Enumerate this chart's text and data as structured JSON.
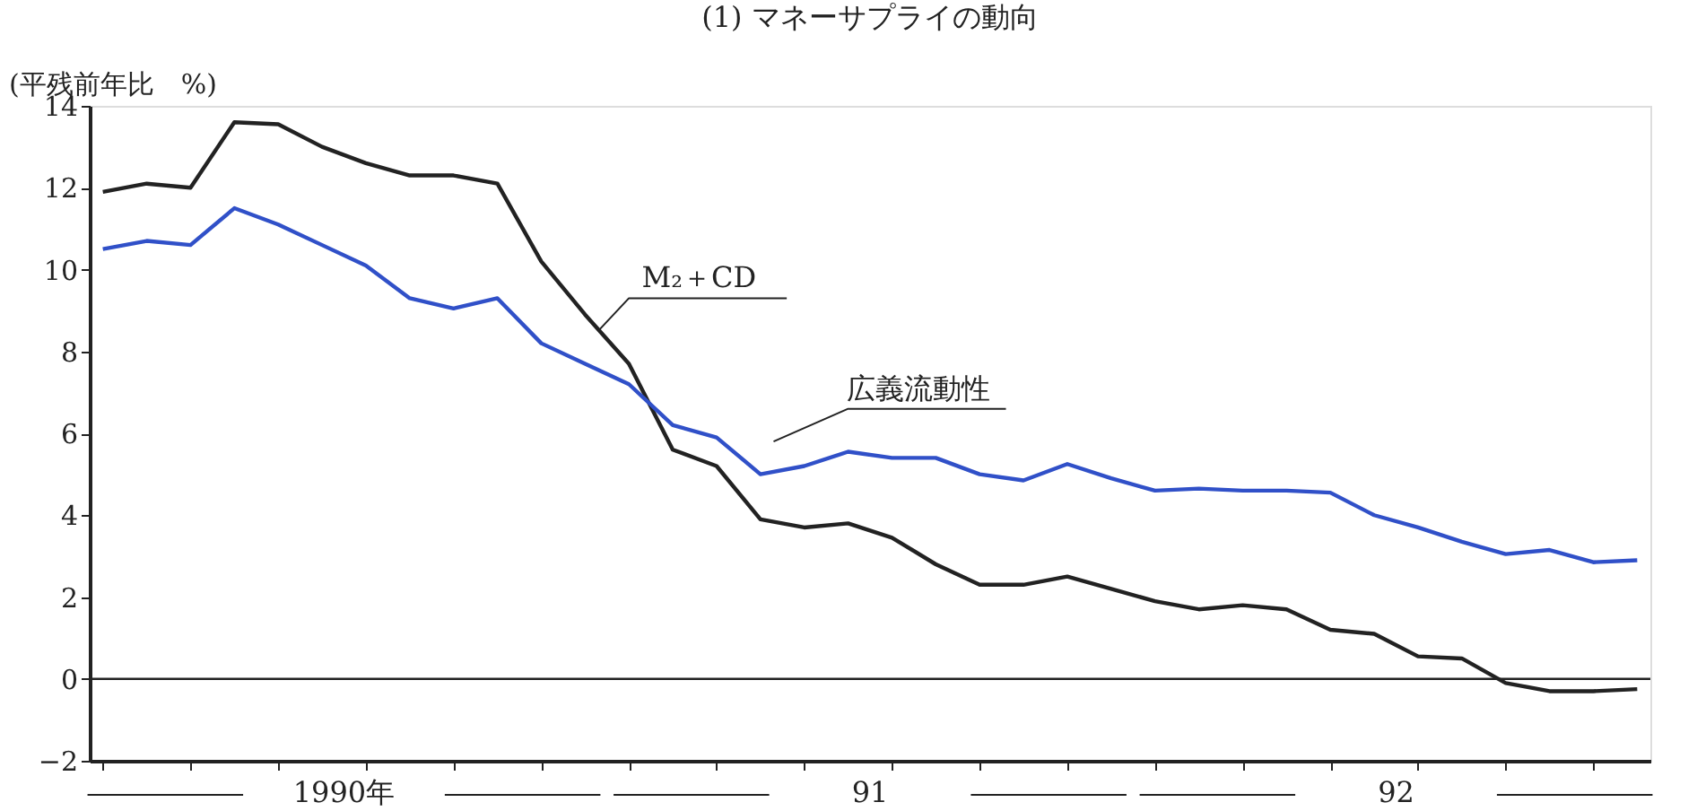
{
  "chart_data": {
    "type": "line",
    "title": "(1) マネーサプライの動向",
    "ylabel": "(平残前年比　%)",
    "categories": [
      null,
      null,
      null,
      null,
      null,
      null,
      null,
      null,
      null,
      null,
      null,
      null,
      null,
      null,
      null,
      null,
      null,
      null,
      null,
      null,
      null,
      null,
      null,
      null,
      null,
      null,
      null,
      null,
      null,
      null,
      null,
      null,
      null,
      null,
      null,
      null
    ],
    "series": [
      {
        "name": "M₂＋CD",
        "color": "#222222",
        "values": [
          11.9,
          12.1,
          12.0,
          13.6,
          13.55,
          13.0,
          12.6,
          12.3,
          12.3,
          12.1,
          10.2,
          8.9,
          7.7,
          5.6,
          5.2,
          3.9,
          3.7,
          3.8,
          3.45,
          2.8,
          2.3,
          2.3,
          2.5,
          2.2,
          1.9,
          1.7,
          1.8,
          1.7,
          1.2,
          1.1,
          0.55,
          0.5,
          -0.1,
          -0.3,
          -0.3,
          -0.25
        ]
      },
      {
        "name": "広義流動性",
        "color": "#3050c8",
        "values": [
          10.5,
          10.7,
          10.6,
          11.5,
          11.1,
          10.6,
          10.1,
          9.3,
          9.05,
          9.3,
          8.2,
          7.7,
          7.2,
          6.2,
          5.9,
          5.0,
          5.2,
          5.55,
          5.4,
          5.4,
          5.0,
          4.85,
          5.25,
          4.9,
          4.6,
          4.65,
          4.6,
          4.6,
          4.55,
          4.0,
          3.7,
          3.35,
          3.05,
          3.15,
          2.85,
          2.9
        ]
      }
    ],
    "ylim": [
      -2,
      14
    ],
    "yticks": [
      -2,
      0,
      2,
      4,
      6,
      8,
      10,
      12,
      14
    ],
    "ref_lines": [
      {
        "axis": "y",
        "value": 0,
        "color": "#222222"
      }
    ],
    "annotations": [
      "1990年",
      "91",
      "92"
    ],
    "grid": false,
    "legend": false,
    "marker": "none",
    "line_style": "solid",
    "tick_labels": "y"
  }
}
